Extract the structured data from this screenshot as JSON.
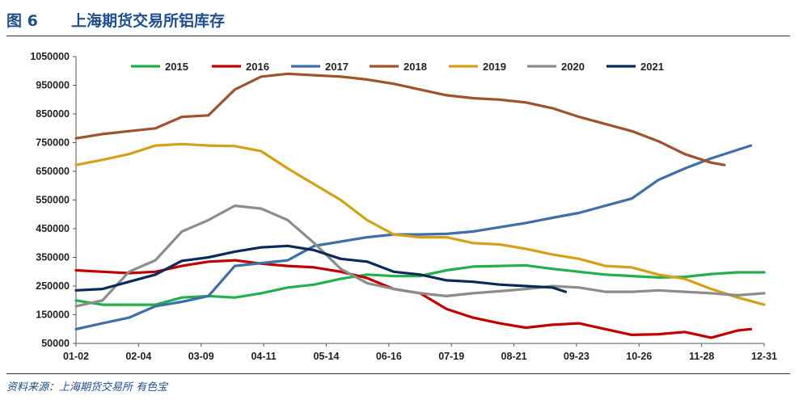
{
  "figure": {
    "number": "图 6",
    "title": "上海期货交易所铝库存",
    "source": "资料来源：上海期货交易所    有色宝"
  },
  "chart_data": {
    "type": "line",
    "title": "上海期货交易所铝库存",
    "xlabel": "",
    "ylabel": "",
    "ylim": [
      50000,
      1050000
    ],
    "y_ticks": [
      50000,
      150000,
      250000,
      350000,
      450000,
      550000,
      650000,
      750000,
      850000,
      950000,
      1050000
    ],
    "x_ticks": [
      "01-02",
      "02-04",
      "03-09",
      "04-11",
      "05-14",
      "06-16",
      "07-19",
      "08-21",
      "09-23",
      "10-26",
      "11-28",
      "12-31"
    ],
    "x_unit": "week index (0 = 01-02, 52 = 12-31)",
    "xlim": [
      0,
      52
    ],
    "grid": false,
    "legend_position": "top",
    "series": [
      {
        "name": "2015",
        "color": "#22b04b",
        "x": [
          0,
          2,
          4,
          6,
          8,
          10,
          12,
          14,
          16,
          18,
          20,
          22,
          24,
          26,
          28,
          30,
          32,
          34,
          36,
          38,
          40,
          42,
          44,
          46,
          48,
          50,
          52
        ],
        "values": [
          200000,
          185000,
          185000,
          185000,
          210000,
          215000,
          210000,
          225000,
          245000,
          255000,
          275000,
          290000,
          285000,
          285000,
          305000,
          318000,
          320000,
          322000,
          310000,
          300000,
          290000,
          285000,
          280000,
          282000,
          292000,
          298000,
          298000
        ]
      },
      {
        "name": "2016",
        "color": "#c00000",
        "x": [
          0,
          2,
          4,
          6,
          8,
          10,
          12,
          14,
          16,
          18,
          20,
          22,
          24,
          26,
          28,
          30,
          32,
          34,
          36,
          38,
          40,
          42,
          44,
          46,
          48,
          50,
          51
        ],
        "values": [
          305000,
          300000,
          295000,
          300000,
          320000,
          335000,
          340000,
          328000,
          320000,
          315000,
          300000,
          278000,
          240000,
          225000,
          170000,
          140000,
          120000,
          105000,
          115000,
          120000,
          100000,
          80000,
          82000,
          90000,
          70000,
          95000,
          100000
        ]
      },
      {
        "name": "2017",
        "color": "#3e6fa8",
        "x": [
          0,
          2,
          4,
          6,
          8,
          10,
          12,
          14,
          16,
          18,
          20,
          22,
          24,
          26,
          28,
          30,
          32,
          34,
          36,
          38,
          40,
          42,
          44,
          46,
          48,
          50,
          51
        ],
        "values": [
          100000,
          120000,
          140000,
          180000,
          195000,
          215000,
          320000,
          330000,
          340000,
          390000,
          405000,
          420000,
          430000,
          430000,
          432000,
          440000,
          455000,
          470000,
          488000,
          505000,
          530000,
          555000,
          620000,
          660000,
          695000,
          725000,
          740000
        ]
      },
      {
        "name": "2018",
        "color": "#a0522d",
        "x": [
          0,
          2,
          4,
          6,
          8,
          10,
          12,
          14,
          16,
          18,
          20,
          22,
          24,
          26,
          28,
          30,
          32,
          34,
          36,
          38,
          40,
          42,
          44,
          46,
          48,
          49
        ],
        "values": [
          765000,
          780000,
          790000,
          800000,
          840000,
          845000,
          935000,
          980000,
          990000,
          985000,
          980000,
          970000,
          955000,
          935000,
          915000,
          905000,
          900000,
          890000,
          870000,
          840000,
          815000,
          790000,
          755000,
          710000,
          680000,
          672000
        ]
      },
      {
        "name": "2019",
        "color": "#d4a017",
        "x": [
          0,
          2,
          4,
          6,
          8,
          10,
          12,
          14,
          16,
          18,
          20,
          22,
          24,
          26,
          28,
          30,
          32,
          34,
          36,
          38,
          40,
          42,
          44,
          46,
          48,
          50,
          52
        ],
        "values": [
          672000,
          690000,
          710000,
          740000,
          745000,
          740000,
          738000,
          720000,
          660000,
          605000,
          550000,
          480000,
          430000,
          420000,
          420000,
          400000,
          395000,
          380000,
          360000,
          345000,
          320000,
          315000,
          290000,
          275000,
          240000,
          210000,
          185000
        ]
      },
      {
        "name": "2020",
        "color": "#8c8c8c",
        "x": [
          0,
          2,
          4,
          6,
          8,
          10,
          12,
          14,
          16,
          18,
          20,
          22,
          24,
          26,
          28,
          30,
          32,
          34,
          36,
          38,
          40,
          42,
          44,
          46,
          48,
          50,
          52
        ],
        "values": [
          180000,
          200000,
          300000,
          340000,
          440000,
          480000,
          530000,
          520000,
          480000,
          400000,
          310000,
          260000,
          240000,
          225000,
          215000,
          225000,
          232000,
          240000,
          250000,
          245000,
          230000,
          230000,
          235000,
          230000,
          225000,
          218000,
          225000
        ]
      },
      {
        "name": "2021",
        "color": "#0b2a5b",
        "x": [
          0,
          2,
          4,
          6,
          8,
          10,
          12,
          14,
          16,
          18,
          20,
          22,
          24,
          26,
          28,
          30,
          32,
          34,
          36,
          37
        ],
        "values": [
          235000,
          240000,
          265000,
          290000,
          338000,
          350000,
          370000,
          385000,
          390000,
          375000,
          345000,
          335000,
          300000,
          290000,
          270000,
          265000,
          255000,
          250000,
          245000,
          230000
        ]
      }
    ]
  }
}
